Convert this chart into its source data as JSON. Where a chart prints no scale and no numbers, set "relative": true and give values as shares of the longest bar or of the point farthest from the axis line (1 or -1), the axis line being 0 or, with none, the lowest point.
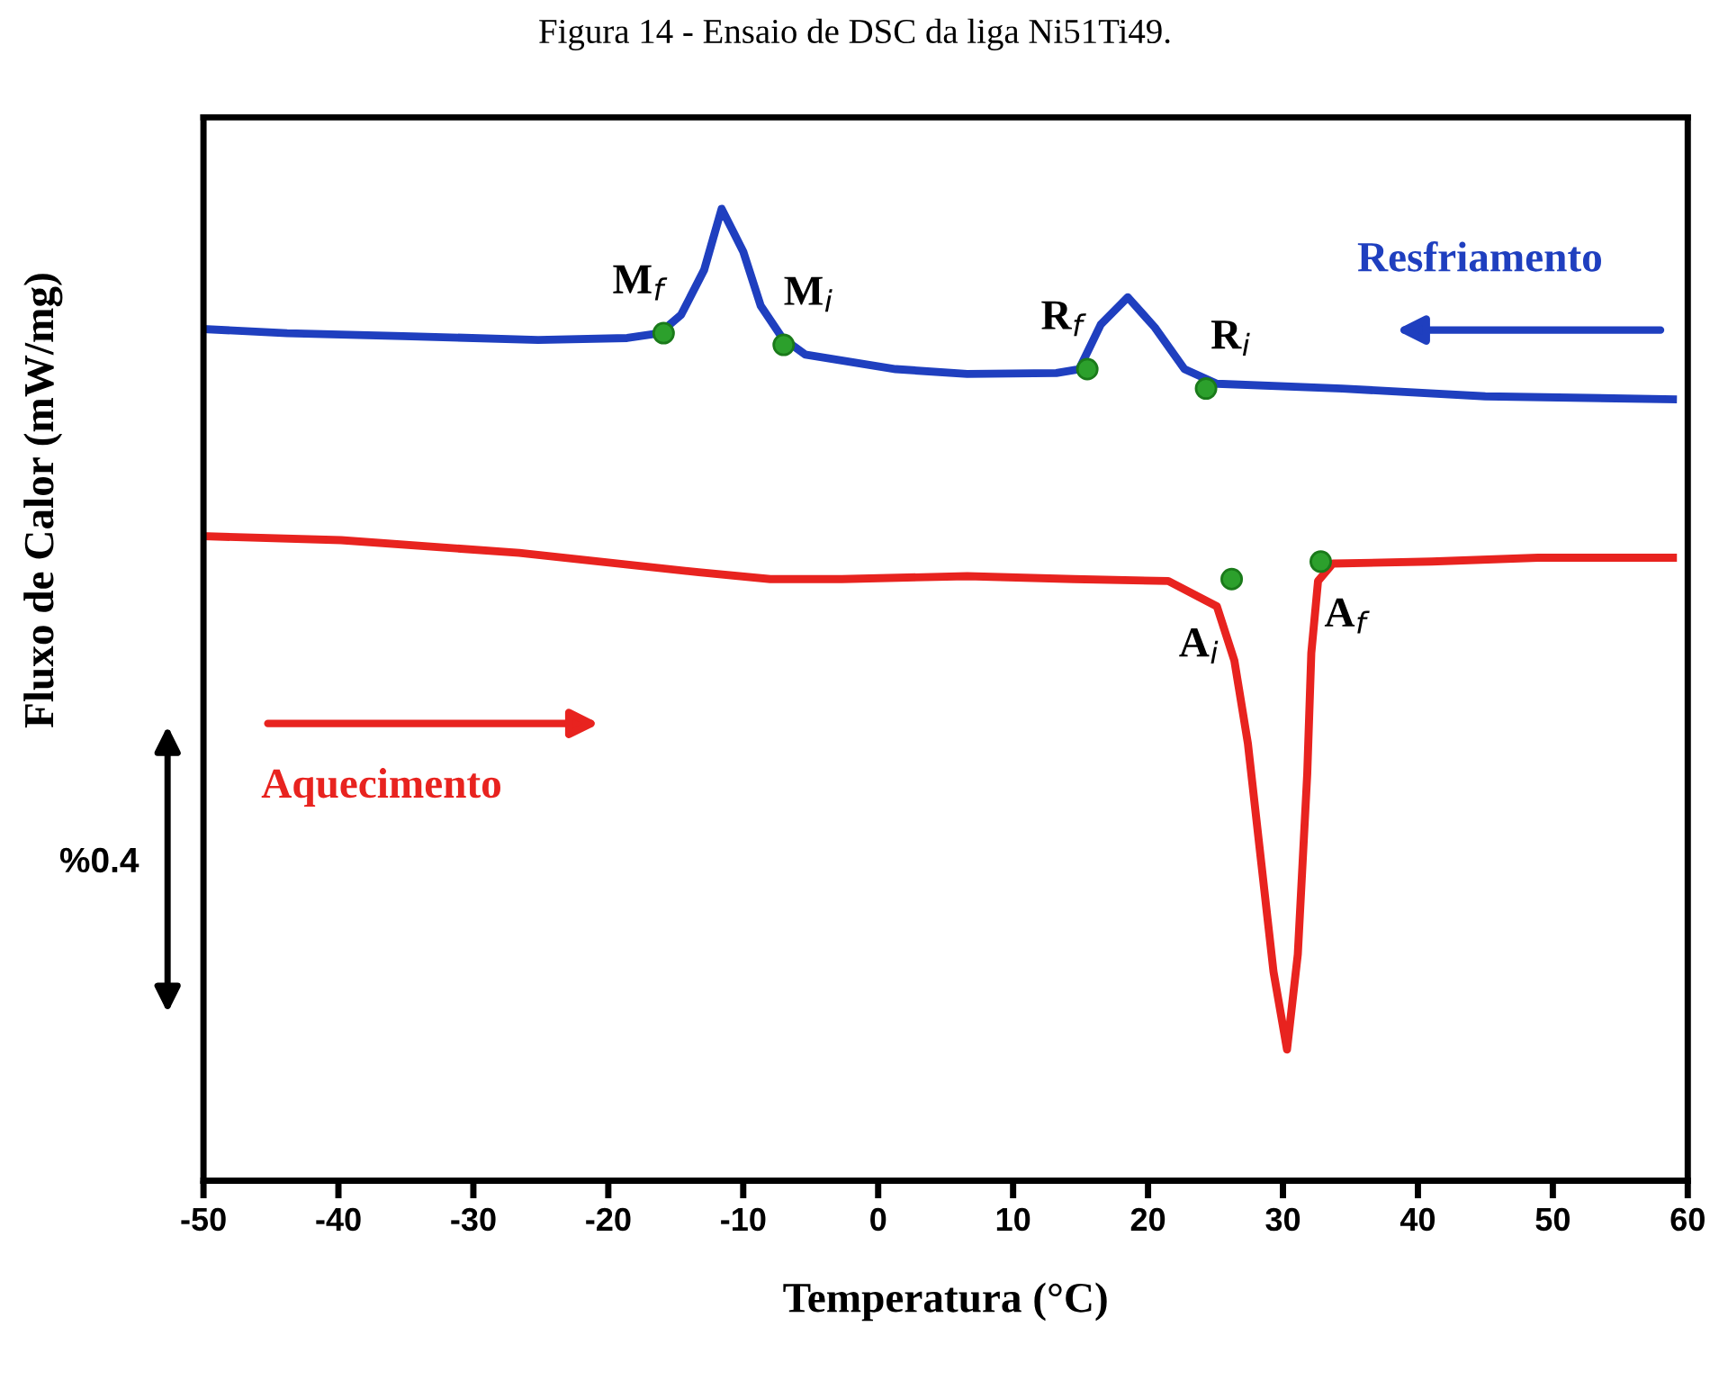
{
  "chart_data": {
    "type": "line",
    "title": "Figura 14 - Ensaio de DSC da liga Ni51Ti49.",
    "xlabel": "Temperatura (°C)",
    "ylabel": "Fluxo de Calor (mW/mg)",
    "relative": true,
    "xlim": [
      -50,
      60
    ],
    "xticks": [
      -50,
      -40,
      -30,
      -20,
      -10,
      0,
      10,
      20,
      30,
      40,
      50,
      60
    ],
    "grid": false,
    "marker": "none",
    "line_style": "solid",
    "series": [
      {
        "name": "Resfriamento",
        "color": "#1f3fbf",
        "x": [
          -49.7,
          -43.8,
          -35.2,
          -25.2,
          -18.6,
          -16.2,
          -14.6,
          -12.9,
          -11.6,
          -10.0,
          -8.7,
          -7.1,
          -5.4,
          1.3,
          6.6,
          13.2,
          14.9,
          16.5,
          18.5,
          20.5,
          22.7,
          25.1,
          34.4,
          45.0,
          58.9
        ],
        "values": [
          0.876,
          0.872,
          0.869,
          0.865,
          0.867,
          0.872,
          0.891,
          0.937,
          1.0,
          0.956,
          0.9,
          0.867,
          0.85,
          0.835,
          0.83,
          0.831,
          0.835,
          0.881,
          0.909,
          0.878,
          0.835,
          0.82,
          0.815,
          0.807,
          0.804
        ]
      },
      {
        "name": "Aquecimento",
        "color": "#e8231f",
        "x": [
          -49.7,
          -39.8,
          -26.6,
          -13.3,
          -8.0,
          -2.7,
          6.6,
          14.5,
          21.5,
          25.1,
          26.4,
          27.4,
          28.4,
          29.3,
          30.3,
          31.1,
          31.8,
          32.1,
          32.6,
          33.7,
          41.0,
          48.9,
          58.9
        ],
        "values": [
          0.663,
          0.659,
          0.646,
          0.626,
          0.619,
          0.619,
          0.622,
          0.619,
          0.617,
          0.591,
          0.535,
          0.45,
          0.326,
          0.215,
          0.135,
          0.233,
          0.419,
          0.543,
          0.617,
          0.635,
          0.637,
          0.641,
          0.641
        ]
      }
    ],
    "annotations": [
      {
        "text": "M$_{f}$",
        "x": -15.9,
        "y": 0.872
      },
      {
        "text": "M$_{i}$",
        "x": -7.0,
        "y": 0.86
      },
      {
        "text": "R$_{f}$",
        "x": 15.5,
        "y": 0.835
      },
      {
        "text": "R$_{i}$",
        "x": 24.3,
        "y": 0.815
      },
      {
        "text": "A$_{i}$",
        "x": 26.2,
        "y": 0.619
      },
      {
        "text": "A$_{f}$",
        "x": 32.8,
        "y": 0.637
      },
      "%0.4"
    ]
  }
}
